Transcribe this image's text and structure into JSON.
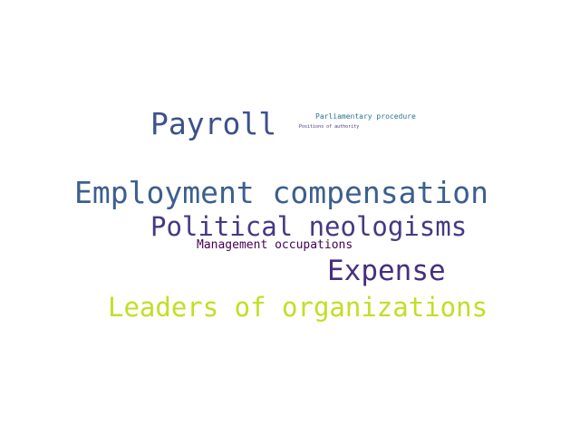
{
  "words": {
    "payroll": {
      "text": "Payroll",
      "color": "#3b528b"
    },
    "parliamentary_procedure": {
      "text": "Parliamentary procedure",
      "color": "#2c728e"
    },
    "positions_of_authority": {
      "text": "Positions of authority",
      "color": "#46327e"
    },
    "employment_compensation": {
      "text": "Employment compensation",
      "color": "#3b5f8f"
    },
    "political_neologisms": {
      "text": "Political neologisms",
      "color": "#443a83"
    },
    "management_occupations": {
      "text": "Management occupations",
      "color": "#440154"
    },
    "expense": {
      "text": "Expense",
      "color": "#472f7d"
    },
    "leaders_of_organizations": {
      "text": "Leaders of organizations",
      "color": "#c2df23"
    }
  }
}
